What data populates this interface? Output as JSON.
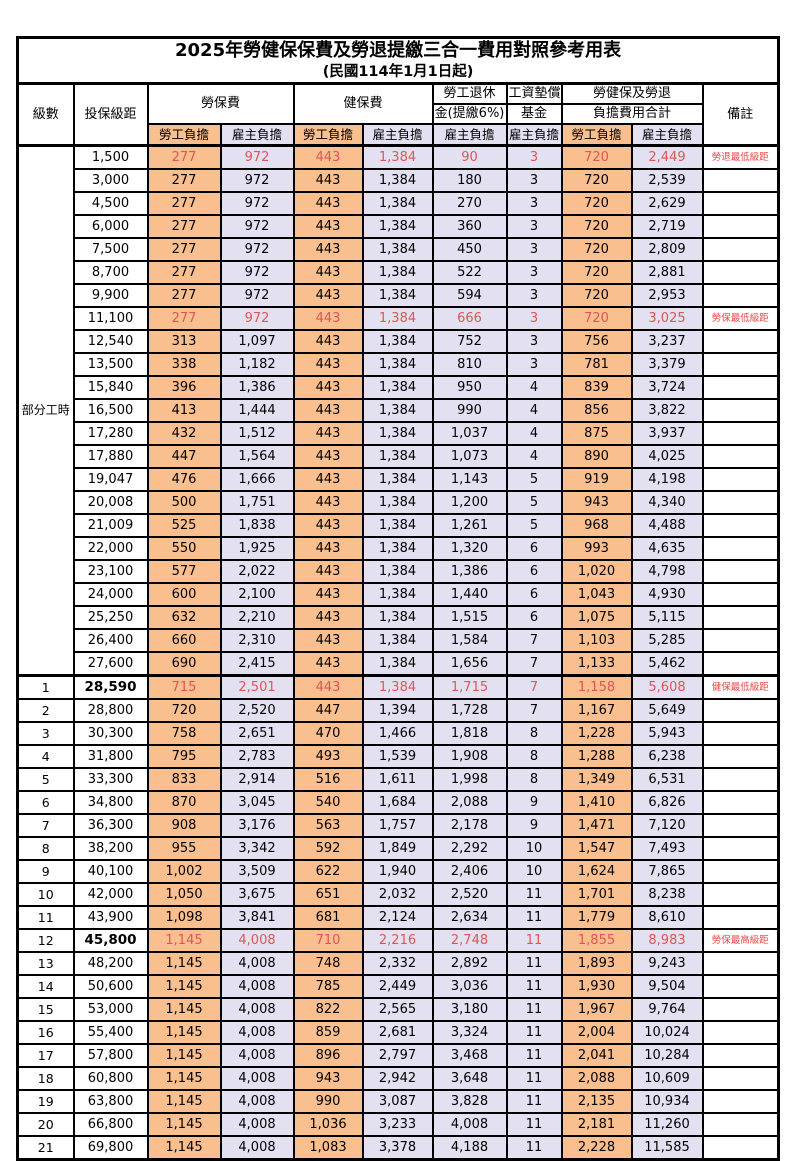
{
  "title": "2025年勞健保保費及勞退提繳三合一費用對照參考用表",
  "subtitle": "(民國114年1月1日起)",
  "colors": {
    "employee_col_bg": "#F9BF8F",
    "employer_col_bg": "#E3E1F1",
    "highlight_number_text": "#E05555",
    "remark_text": "#EE4545",
    "grid": "#000000"
  },
  "header": {
    "level": "級數",
    "bracket": "投保級距",
    "labor_insurance": "勞保費",
    "health_insurance": "健保費",
    "pension_line1": "勞工退休",
    "pension_line2": "金(提繳6%)",
    "wage_fund_line1": "工資墊償",
    "wage_fund_line2": "基金",
    "total_line1": "勞健保及勞退",
    "total_line2": "負擔費用合計",
    "remark": "備註",
    "employee_share": "勞工負擔",
    "employer_share": "雇主負擔"
  },
  "table": {
    "part_time": {
      "label": "部分工時",
      "row_count": 23
    },
    "columns_employee_value_indexes": [
      0,
      2,
      6
    ],
    "rows": [
      {
        "level": null,
        "bracket": "1,500",
        "values": [
          "277",
          "972",
          "443",
          "1,384",
          "90",
          "3",
          "720",
          "2,449"
        ],
        "red": true,
        "remark": "勞退最低級距"
      },
      {
        "level": null,
        "bracket": "3,000",
        "values": [
          "277",
          "972",
          "443",
          "1,384",
          "180",
          "3",
          "720",
          "2,539"
        ],
        "red": false,
        "remark": ""
      },
      {
        "level": null,
        "bracket": "4,500",
        "values": [
          "277",
          "972",
          "443",
          "1,384",
          "270",
          "3",
          "720",
          "2,629"
        ],
        "red": false,
        "remark": ""
      },
      {
        "level": null,
        "bracket": "6,000",
        "values": [
          "277",
          "972",
          "443",
          "1,384",
          "360",
          "3",
          "720",
          "2,719"
        ],
        "red": false,
        "remark": ""
      },
      {
        "level": null,
        "bracket": "7,500",
        "values": [
          "277",
          "972",
          "443",
          "1,384",
          "450",
          "3",
          "720",
          "2,809"
        ],
        "red": false,
        "remark": ""
      },
      {
        "level": null,
        "bracket": "8,700",
        "values": [
          "277",
          "972",
          "443",
          "1,384",
          "522",
          "3",
          "720",
          "2,881"
        ],
        "red": false,
        "remark": ""
      },
      {
        "level": null,
        "bracket": "9,900",
        "values": [
          "277",
          "972",
          "443",
          "1,384",
          "594",
          "3",
          "720",
          "2,953"
        ],
        "red": false,
        "remark": ""
      },
      {
        "level": null,
        "bracket": "11,100",
        "values": [
          "277",
          "972",
          "443",
          "1,384",
          "666",
          "3",
          "720",
          "3,025"
        ],
        "red": true,
        "remark": "勞保最低級距"
      },
      {
        "level": null,
        "bracket": "12,540",
        "values": [
          "313",
          "1,097",
          "443",
          "1,384",
          "752",
          "3",
          "756",
          "3,237"
        ],
        "red": false,
        "remark": ""
      },
      {
        "level": null,
        "bracket": "13,500",
        "values": [
          "338",
          "1,182",
          "443",
          "1,384",
          "810",
          "3",
          "781",
          "3,379"
        ],
        "red": false,
        "remark": ""
      },
      {
        "level": null,
        "bracket": "15,840",
        "values": [
          "396",
          "1,386",
          "443",
          "1,384",
          "950",
          "4",
          "839",
          "3,724"
        ],
        "red": false,
        "remark": ""
      },
      {
        "level": null,
        "bracket": "16,500",
        "values": [
          "413",
          "1,444",
          "443",
          "1,384",
          "990",
          "4",
          "856",
          "3,822"
        ],
        "red": false,
        "remark": ""
      },
      {
        "level": null,
        "bracket": "17,280",
        "values": [
          "432",
          "1,512",
          "443",
          "1,384",
          "1,037",
          "4",
          "875",
          "3,937"
        ],
        "red": false,
        "remark": ""
      },
      {
        "level": null,
        "bracket": "17,880",
        "values": [
          "447",
          "1,564",
          "443",
          "1,384",
          "1,073",
          "4",
          "890",
          "4,025"
        ],
        "red": false,
        "remark": ""
      },
      {
        "level": null,
        "bracket": "19,047",
        "values": [
          "476",
          "1,666",
          "443",
          "1,384",
          "1,143",
          "5",
          "919",
          "4,198"
        ],
        "red": false,
        "remark": ""
      },
      {
        "level": null,
        "bracket": "20,008",
        "values": [
          "500",
          "1,751",
          "443",
          "1,384",
          "1,200",
          "5",
          "943",
          "4,340"
        ],
        "red": false,
        "remark": ""
      },
      {
        "level": null,
        "bracket": "21,009",
        "values": [
          "525",
          "1,838",
          "443",
          "1,384",
          "1,261",
          "5",
          "968",
          "4,488"
        ],
        "red": false,
        "remark": ""
      },
      {
        "level": null,
        "bracket": "22,000",
        "values": [
          "550",
          "1,925",
          "443",
          "1,384",
          "1,320",
          "6",
          "993",
          "4,635"
        ],
        "red": false,
        "remark": ""
      },
      {
        "level": null,
        "bracket": "23,100",
        "values": [
          "577",
          "2,022",
          "443",
          "1,384",
          "1,386",
          "6",
          "1,020",
          "4,798"
        ],
        "red": false,
        "remark": ""
      },
      {
        "level": null,
        "bracket": "24,000",
        "values": [
          "600",
          "2,100",
          "443",
          "1,384",
          "1,440",
          "6",
          "1,043",
          "4,930"
        ],
        "red": false,
        "remark": ""
      },
      {
        "level": null,
        "bracket": "25,250",
        "values": [
          "632",
          "2,210",
          "443",
          "1,384",
          "1,515",
          "6",
          "1,075",
          "5,115"
        ],
        "red": false,
        "remark": ""
      },
      {
        "level": null,
        "bracket": "26,400",
        "values": [
          "660",
          "2,310",
          "443",
          "1,384",
          "1,584",
          "7",
          "1,103",
          "5,285"
        ],
        "red": false,
        "remark": ""
      },
      {
        "level": null,
        "bracket": "27,600",
        "values": [
          "690",
          "2,415",
          "443",
          "1,384",
          "1,656",
          "7",
          "1,133",
          "5,462"
        ],
        "red": false,
        "remark": ""
      },
      {
        "level": "1",
        "bracket": "28,590",
        "values": [
          "715",
          "2,501",
          "443",
          "1,384",
          "1,715",
          "7",
          "1,158",
          "5,608"
        ],
        "red": true,
        "remark": "健保最低級距",
        "emph": true,
        "section_top": true
      },
      {
        "level": "2",
        "bracket": "28,800",
        "values": [
          "720",
          "2,520",
          "447",
          "1,394",
          "1,728",
          "7",
          "1,167",
          "5,649"
        ],
        "red": false,
        "remark": ""
      },
      {
        "level": "3",
        "bracket": "30,300",
        "values": [
          "758",
          "2,651",
          "470",
          "1,466",
          "1,818",
          "8",
          "1,228",
          "5,943"
        ],
        "red": false,
        "remark": ""
      },
      {
        "level": "4",
        "bracket": "31,800",
        "values": [
          "795",
          "2,783",
          "493",
          "1,539",
          "1,908",
          "8",
          "1,288",
          "6,238"
        ],
        "red": false,
        "remark": ""
      },
      {
        "level": "5",
        "bracket": "33,300",
        "values": [
          "833",
          "2,914",
          "516",
          "1,611",
          "1,998",
          "8",
          "1,349",
          "6,531"
        ],
        "red": false,
        "remark": ""
      },
      {
        "level": "6",
        "bracket": "34,800",
        "values": [
          "870",
          "3,045",
          "540",
          "1,684",
          "2,088",
          "9",
          "1,410",
          "6,826"
        ],
        "red": false,
        "remark": ""
      },
      {
        "level": "7",
        "bracket": "36,300",
        "values": [
          "908",
          "3,176",
          "563",
          "1,757",
          "2,178",
          "9",
          "1,471",
          "7,120"
        ],
        "red": false,
        "remark": ""
      },
      {
        "level": "8",
        "bracket": "38,200",
        "values": [
          "955",
          "3,342",
          "592",
          "1,849",
          "2,292",
          "10",
          "1,547",
          "7,493"
        ],
        "red": false,
        "remark": ""
      },
      {
        "level": "9",
        "bracket": "40,100",
        "values": [
          "1,002",
          "3,509",
          "622",
          "1,940",
          "2,406",
          "10",
          "1,624",
          "7,865"
        ],
        "red": false,
        "remark": ""
      },
      {
        "level": "10",
        "bracket": "42,000",
        "values": [
          "1,050",
          "3,675",
          "651",
          "2,032",
          "2,520",
          "11",
          "1,701",
          "8,238"
        ],
        "red": false,
        "remark": ""
      },
      {
        "level": "11",
        "bracket": "43,900",
        "values": [
          "1,098",
          "3,841",
          "681",
          "2,124",
          "2,634",
          "11",
          "1,779",
          "8,610"
        ],
        "red": false,
        "remark": ""
      },
      {
        "level": "12",
        "bracket": "45,800",
        "values": [
          "1,145",
          "4,008",
          "710",
          "2,216",
          "2,748",
          "11",
          "1,855",
          "8,983"
        ],
        "red": true,
        "remark": "勞保最高級距",
        "emph": true
      },
      {
        "level": "13",
        "bracket": "48,200",
        "values": [
          "1,145",
          "4,008",
          "748",
          "2,332",
          "2,892",
          "11",
          "1,893",
          "9,243"
        ],
        "red": false,
        "remark": ""
      },
      {
        "level": "14",
        "bracket": "50,600",
        "values": [
          "1,145",
          "4,008",
          "785",
          "2,449",
          "3,036",
          "11",
          "1,930",
          "9,504"
        ],
        "red": false,
        "remark": ""
      },
      {
        "level": "15",
        "bracket": "53,000",
        "values": [
          "1,145",
          "4,008",
          "822",
          "2,565",
          "3,180",
          "11",
          "1,967",
          "9,764"
        ],
        "red": false,
        "remark": ""
      },
      {
        "level": "16",
        "bracket": "55,400",
        "values": [
          "1,145",
          "4,008",
          "859",
          "2,681",
          "3,324",
          "11",
          "2,004",
          "10,024"
        ],
        "red": false,
        "remark": ""
      },
      {
        "level": "17",
        "bracket": "57,800",
        "values": [
          "1,145",
          "4,008",
          "896",
          "2,797",
          "3,468",
          "11",
          "2,041",
          "10,284"
        ],
        "red": false,
        "remark": ""
      },
      {
        "level": "18",
        "bracket": "60,800",
        "values": [
          "1,145",
          "4,008",
          "943",
          "2,942",
          "3,648",
          "11",
          "2,088",
          "10,609"
        ],
        "red": false,
        "remark": ""
      },
      {
        "level": "19",
        "bracket": "63,800",
        "values": [
          "1,145",
          "4,008",
          "990",
          "3,087",
          "3,828",
          "11",
          "2,135",
          "10,934"
        ],
        "red": false,
        "remark": ""
      },
      {
        "level": "20",
        "bracket": "66,800",
        "values": [
          "1,145",
          "4,008",
          "1,036",
          "3,233",
          "4,008",
          "11",
          "2,181",
          "11,260"
        ],
        "red": false,
        "remark": ""
      },
      {
        "level": "21",
        "bracket": "69,800",
        "values": [
          "1,145",
          "4,008",
          "1,083",
          "3,378",
          "4,188",
          "11",
          "2,228",
          "11,585"
        ],
        "red": false,
        "remark": ""
      }
    ]
  }
}
